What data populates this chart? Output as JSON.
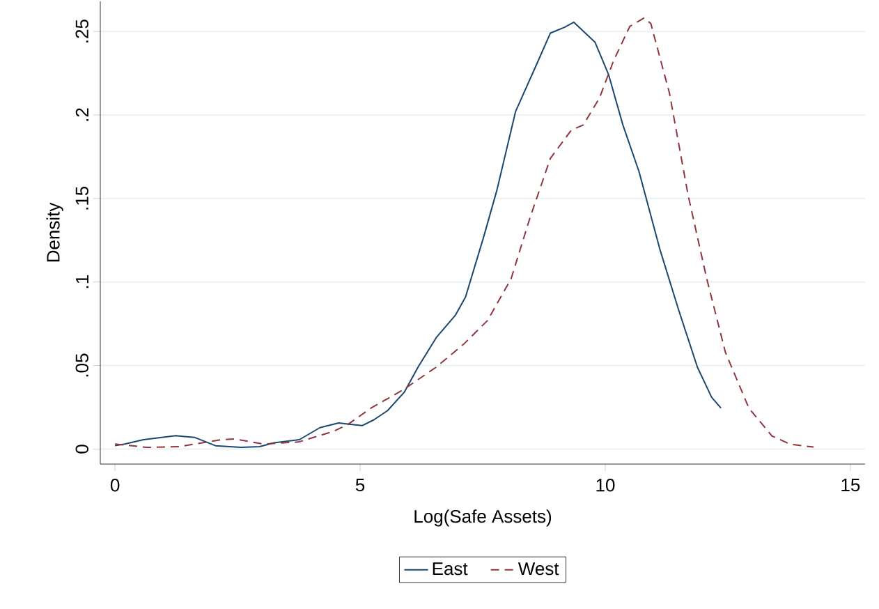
{
  "chart_data": {
    "type": "line",
    "xlabel": "Log(Safe Assets)",
    "ylabel": "Density",
    "xlim": [
      -0.3,
      15.3
    ],
    "ylim": [
      -0.009,
      0.268
    ],
    "xticks": [
      0,
      5,
      10,
      15
    ],
    "yticks": [
      0,
      {
        "value": 0.05,
        "label": ".05"
      },
      {
        "value": 0.1,
        "label": ".1"
      },
      {
        "value": 0.15,
        "label": ".15"
      },
      {
        "value": 0.2,
        "label": ".2"
      },
      {
        "value": 0.25,
        "label": ".25"
      }
    ],
    "grid": "y",
    "legend": "bottom",
    "series": [
      {
        "name": "East",
        "color": "#1a476f",
        "line_style": "solid",
        "x": [
          0.0,
          0.2,
          0.58,
          1.24,
          1.62,
          2.05,
          2.57,
          2.95,
          3.24,
          3.76,
          4.18,
          4.56,
          5.04,
          5.28,
          5.56,
          5.9,
          6.18,
          6.56,
          6.94,
          7.15,
          7.51,
          7.79,
          8.17,
          8.55,
          8.88,
          9.17,
          9.36,
          9.79,
          10.07,
          10.36,
          10.69,
          11.12,
          11.5,
          11.88,
          12.17,
          12.36
        ],
        "values": [
          0.002,
          0.003,
          0.0056,
          0.008,
          0.007,
          0.002,
          0.001,
          0.0014,
          0.0037,
          0.0056,
          0.0128,
          0.0156,
          0.014,
          0.0175,
          0.023,
          0.034,
          0.049,
          0.067,
          0.08,
          0.091,
          0.126,
          0.155,
          0.202,
          0.227,
          0.249,
          0.2525,
          0.2555,
          0.2436,
          0.224,
          0.194,
          0.166,
          0.119,
          0.083,
          0.049,
          0.031,
          0.0245
        ]
      },
      {
        "name": "West",
        "color": "#90353b",
        "line_style": "dashed",
        "x": [
          0.0,
          0.65,
          1.31,
          2.16,
          2.45,
          3.02,
          3.74,
          4.46,
          4.75,
          5.22,
          5.88,
          6.55,
          7.12,
          7.6,
          8.08,
          8.46,
          8.88,
          9.31,
          9.55,
          9.88,
          10.17,
          10.5,
          10.79,
          10.93,
          11.31,
          11.69,
          12.07,
          12.45,
          12.93,
          13.4,
          13.78,
          14.25
        ],
        "values": [
          0.003,
          0.001,
          0.0014,
          0.0056,
          0.006,
          0.003,
          0.0042,
          0.0106,
          0.0147,
          0.0245,
          0.0355,
          0.049,
          0.063,
          0.077,
          0.102,
          0.138,
          0.174,
          0.191,
          0.194,
          0.21,
          0.2325,
          0.253,
          0.258,
          0.2547,
          0.213,
          0.152,
          0.102,
          0.058,
          0.0245,
          0.0078,
          0.0028,
          0.0012
        ]
      }
    ]
  }
}
